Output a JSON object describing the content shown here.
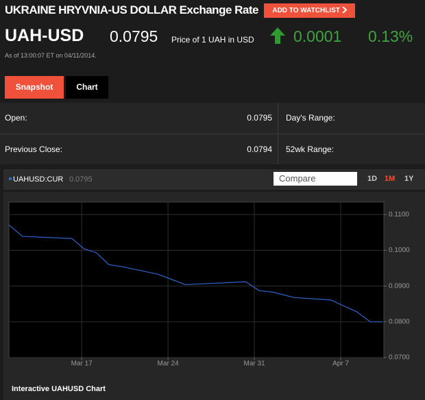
{
  "header": {
    "title": "UKRAINE HRYVNIA-US DOLLAR Exchange Rate",
    "watchlist_button": "ADD TO WATCHLIST"
  },
  "quote": {
    "symbol": "UAH-USD",
    "price": "0.0795",
    "price_note": "Price of 1 UAH in USD",
    "change": "0.0001",
    "change_pct": "0.13%",
    "timestamp": "As of 13:00:07 ET on 04/11/2014."
  },
  "tabs": [
    "Snapshot",
    "Chart"
  ],
  "stats": {
    "rows": [
      [
        "Open:",
        "0.0795",
        "Day's Range:"
      ],
      [
        "Previous Close:",
        "0.0794",
        "52wk Range:"
      ]
    ]
  },
  "chart_header": {
    "ticker": "UAHUSD:CUR",
    "last": "0.0795",
    "compare_placeholder": "Compare",
    "ranges": [
      "1D",
      "1M",
      "1Y"
    ]
  },
  "chart_data": {
    "type": "line",
    "color": "#2f66d0",
    "grid": true,
    "x": [
      -5.9,
      -4.8,
      -0.8,
      0.2,
      1.2,
      2.2,
      3.3,
      6.2,
      8.4,
      13.3,
      14.4,
      15.5,
      17.2,
      20.2,
      22.3,
      23.4,
      24.4
    ],
    "values": [
      0.1071,
      0.1039,
      0.1033,
      0.1004,
      0.0993,
      0.096,
      0.0954,
      0.0933,
      0.0904,
      0.0912,
      0.0887,
      0.0883,
      0.0868,
      0.0861,
      0.0828,
      0.08,
      0.08
    ],
    "xlim": [
      -5.9,
      24.5
    ],
    "ylim": [
      0.07,
      0.1135
    ],
    "xticks": [
      {
        "value": 0,
        "label": "Mar 17"
      },
      {
        "value": 7,
        "label": "Mar 24"
      },
      {
        "value": 14,
        "label": "Mar 31"
      },
      {
        "value": 21,
        "label": "Apr 7"
      }
    ],
    "yticks": [
      {
        "value": 0.07,
        "label": "0.0700"
      },
      {
        "value": 0.08,
        "label": "0.0800"
      },
      {
        "value": 0.09,
        "label": "0.0900"
      },
      {
        "value": 0.1,
        "label": "0.1000"
      },
      {
        "value": 0.11,
        "label": "0.1100"
      }
    ]
  },
  "footer": "Interactive UAHUSD Chart"
}
